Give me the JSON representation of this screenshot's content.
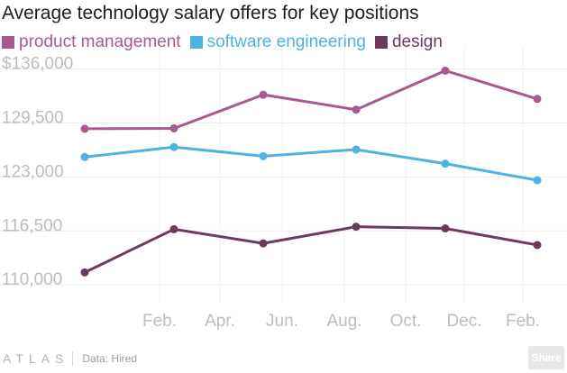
{
  "chart_data": {
    "type": "line",
    "title": "Average technology salary offers for key positions",
    "x_tick_labels": [
      "Feb.",
      "Apr.",
      "Jun.",
      "Aug.",
      "Oct.",
      "Dec.",
      "Feb."
    ],
    "y_tick_labels": [
      "$136,000",
      "129,500",
      "123,000",
      "116,500",
      "110,000"
    ],
    "y_ticks": [
      136000,
      129500,
      123000,
      116500,
      110000
    ],
    "ylim": [
      108500,
      137800
    ],
    "grid": true,
    "legend_position": "top-left",
    "series": [
      {
        "name": "product management",
        "color": "#a85a8e",
        "points": [
          {
            "x": "Nov.",
            "y": 128800
          },
          {
            "x": "Feb.",
            "y": 128850
          },
          {
            "x": "May",
            "y": 132900
          },
          {
            "x": "Aug.",
            "y": 131100
          },
          {
            "x": "Nov.",
            "y": 135800
          },
          {
            "x": "Feb.",
            "y": 132400
          }
        ]
      },
      {
        "name": "software engineering",
        "color": "#4eb2e3",
        "points": [
          {
            "x": "Nov.",
            "y": 125400
          },
          {
            "x": "Feb.",
            "y": 126600
          },
          {
            "x": "May",
            "y": 125500
          },
          {
            "x": "Aug.",
            "y": 126300
          },
          {
            "x": "Nov.",
            "y": 124600
          },
          {
            "x": "Feb.",
            "y": 122600
          }
        ]
      },
      {
        "name": "design",
        "color": "#6c3a5e",
        "points": [
          {
            "x": "Nov.",
            "y": 111500
          },
          {
            "x": "Feb.",
            "y": 116700
          },
          {
            "x": "May",
            "y": 115000
          },
          {
            "x": "Aug.",
            "y": 117000
          },
          {
            "x": "Nov.",
            "y": 116800
          },
          {
            "x": "Feb.",
            "y": 114800
          }
        ]
      }
    ]
  },
  "footer": {
    "brand": "ATLAS",
    "source": "Data: Hired",
    "share_label": "Share"
  }
}
